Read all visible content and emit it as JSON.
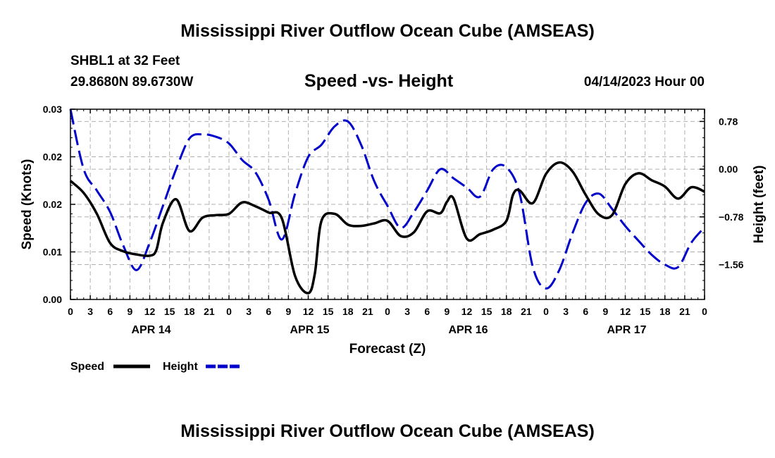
{
  "header": {
    "title": "Mississippi River Outflow Ocean Cube (AMSEAS)",
    "station": "SHBL1 at 32 Feet",
    "coords": "29.8680N  89.6730W",
    "subtitle": "Speed -vs- Height",
    "date_hour": "04/14/2023 Hour 00"
  },
  "footer": {
    "title": "Mississippi River Outflow Ocean Cube (AMSEAS)"
  },
  "chart_data": {
    "type": "line",
    "title": "Speed -vs- Height",
    "xlabel": "Forecast (Z)",
    "ylabel_left": "Speed (Knots)",
    "ylabel_right": "Height (feet)",
    "x_range_hours": [
      0,
      96
    ],
    "x_tick_hours": [
      0,
      3,
      6,
      9,
      12,
      15,
      18,
      21,
      24,
      27,
      30,
      33,
      36,
      39,
      42,
      45,
      48,
      51,
      54,
      57,
      60,
      63,
      66,
      69,
      72,
      75,
      78,
      81,
      84,
      87,
      90,
      93,
      96
    ],
    "x_tick_labels": [
      "0",
      "3",
      "6",
      "9",
      "12",
      "15",
      "18",
      "21",
      "0",
      "3",
      "6",
      "9",
      "12",
      "15",
      "18",
      "21",
      "0",
      "3",
      "6",
      "9",
      "12",
      "15",
      "18",
      "21",
      "0",
      "3",
      "6",
      "9",
      "12",
      "15",
      "18",
      "21",
      "0"
    ],
    "day_labels": [
      {
        "hour": 12,
        "label": "APR 14"
      },
      {
        "hour": 36,
        "label": "APR 15"
      },
      {
        "hour": 60,
        "label": "APR 16"
      },
      {
        "hour": 84,
        "label": "APR 17"
      }
    ],
    "left_axis": {
      "ylim": [
        0,
        0.03
      ],
      "ticks": [
        0,
        0.01,
        0.02,
        0.02,
        0.03
      ],
      "tick_values": [
        0,
        0.0075,
        0.015,
        0.0225,
        0.03
      ],
      "tick_labels": [
        "0.00",
        "0.01",
        "0.02",
        "0.02",
        "0.03"
      ]
    },
    "right_axis": {
      "ylim": [
        -2.13,
        0.98
      ],
      "tick_values": [
        0.78,
        0.0,
        -0.78,
        -1.56
      ],
      "tick_labels": [
        "0.78",
        "0.00",
        "-0.78",
        "-1.56"
      ]
    },
    "grid": true,
    "legend": [
      {
        "name": "Speed",
        "color": "#000000",
        "dash": "solid"
      },
      {
        "name": "Height",
        "color": "#0000cc",
        "dash": "dashed"
      }
    ],
    "series": [
      {
        "name": "Speed",
        "axis": "left",
        "color": "#000000",
        "x": [
          0,
          2,
          4,
          6,
          8,
          10,
          12,
          13,
          14,
          16,
          18,
          20,
          22,
          24,
          26,
          28,
          30,
          32,
          34,
          36,
          37,
          38,
          40,
          42,
          44,
          46,
          48,
          50,
          52,
          54,
          56,
          57,
          58,
          60,
          62,
          64,
          66,
          67,
          68,
          70,
          72,
          74,
          76,
          78,
          80,
          82,
          84,
          86,
          88,
          90,
          92,
          94,
          96
        ],
        "y": [
          0.0187,
          0.0168,
          0.0135,
          0.0089,
          0.0076,
          0.0071,
          0.0069,
          0.0078,
          0.0121,
          0.0158,
          0.0108,
          0.0129,
          0.0133,
          0.0135,
          0.0153,
          0.0147,
          0.0137,
          0.0128,
          0.0037,
          0.001,
          0.0041,
          0.0124,
          0.0135,
          0.0118,
          0.0116,
          0.012,
          0.0124,
          0.01,
          0.0106,
          0.0139,
          0.0136,
          0.0154,
          0.0159,
          0.0096,
          0.0103,
          0.011,
          0.0124,
          0.0165,
          0.0172,
          0.0152,
          0.0198,
          0.0216,
          0.0202,
          0.0165,
          0.0134,
          0.0133,
          0.0182,
          0.0199,
          0.0188,
          0.0178,
          0.0159,
          0.0177,
          0.017
        ]
      },
      {
        "name": "Height",
        "axis": "right",
        "color": "#0000cc",
        "x": [
          0,
          2,
          4,
          6,
          8,
          10,
          12,
          14,
          16,
          18,
          20,
          22,
          24,
          26,
          28,
          30,
          32,
          34,
          36,
          38,
          40,
          42,
          44,
          46,
          48,
          50,
          52,
          54,
          56,
          58,
          60,
          62,
          64,
          66,
          68,
          70,
          72,
          74,
          76,
          78,
          80,
          82,
          84,
          86,
          88,
          90,
          92,
          94,
          96
        ],
        "y": [
          0.98,
          0.0,
          -0.35,
          -0.7,
          -1.25,
          -1.65,
          -1.2,
          -0.6,
          0.0,
          0.5,
          0.57,
          0.53,
          0.42,
          0.15,
          -0.05,
          -0.5,
          -1.15,
          -0.4,
          0.2,
          0.4,
          0.7,
          0.78,
          0.4,
          -0.2,
          -0.6,
          -0.96,
          -0.7,
          -0.35,
          0.0,
          -0.15,
          -0.3,
          -0.45,
          0.0,
          0.03,
          -0.4,
          -1.6,
          -1.95,
          -1.65,
          -1.05,
          -0.55,
          -0.4,
          -0.65,
          -0.93,
          -1.17,
          -1.4,
          -1.56,
          -1.6,
          -1.2,
          -0.95
        ]
      }
    ]
  }
}
